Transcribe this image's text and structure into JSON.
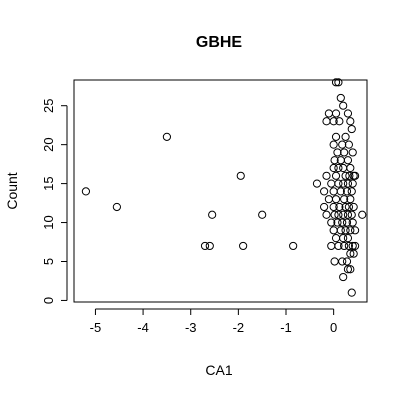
{
  "chart_data": {
    "type": "scatter",
    "title": "GBHE",
    "xlabel": "CA1",
    "ylabel": "Count",
    "xlim": [
      -5.45,
      0.7
    ],
    "ylim": [
      -0.2,
      28.3
    ],
    "x_ticks": [
      -5,
      -4,
      -3,
      -2,
      -1,
      0
    ],
    "y_ticks": [
      0,
      5,
      10,
      15,
      20,
      25
    ],
    "grid": false,
    "legend": "none",
    "points": [
      {
        "x": -5.2,
        "y": 14
      },
      {
        "x": -4.55,
        "y": 12
      },
      {
        "x": -3.5,
        "y": 21
      },
      {
        "x": -2.7,
        "y": 7
      },
      {
        "x": -2.6,
        "y": 7
      },
      {
        "x": -2.55,
        "y": 11
      },
      {
        "x": -1.95,
        "y": 16
      },
      {
        "x": -1.9,
        "y": 7
      },
      {
        "x": -1.5,
        "y": 11
      },
      {
        "x": -0.85,
        "y": 7
      },
      {
        "x": 0.05,
        "y": 28
      },
      {
        "x": 0.1,
        "y": 28
      },
      {
        "x": 0.15,
        "y": 26
      },
      {
        "x": 0.2,
        "y": 25
      },
      {
        "x": -0.1,
        "y": 24
      },
      {
        "x": 0.05,
        "y": 24
      },
      {
        "x": 0.3,
        "y": 24
      },
      {
        "x": -0.15,
        "y": 23
      },
      {
        "x": 0.0,
        "y": 23
      },
      {
        "x": 0.12,
        "y": 23
      },
      {
        "x": 0.35,
        "y": 23
      },
      {
        "x": 0.38,
        "y": 22
      },
      {
        "x": 0.05,
        "y": 21
      },
      {
        "x": 0.25,
        "y": 21
      },
      {
        "x": 0.0,
        "y": 20
      },
      {
        "x": 0.18,
        "y": 20
      },
      {
        "x": 0.32,
        "y": 20
      },
      {
        "x": 0.08,
        "y": 19
      },
      {
        "x": 0.22,
        "y": 19
      },
      {
        "x": 0.4,
        "y": 19
      },
      {
        "x": 0.02,
        "y": 18
      },
      {
        "x": 0.15,
        "y": 18
      },
      {
        "x": 0.3,
        "y": 18
      },
      {
        "x": 0.0,
        "y": 17
      },
      {
        "x": 0.1,
        "y": 17
      },
      {
        "x": 0.2,
        "y": 17
      },
      {
        "x": 0.35,
        "y": 17
      },
      {
        "x": -0.15,
        "y": 16
      },
      {
        "x": 0.05,
        "y": 16
      },
      {
        "x": 0.25,
        "y": 16
      },
      {
        "x": 0.33,
        "y": 16
      },
      {
        "x": 0.42,
        "y": 16
      },
      {
        "x": 0.45,
        "y": 16
      },
      {
        "x": -0.35,
        "y": 15
      },
      {
        "x": -0.05,
        "y": 15
      },
      {
        "x": 0.1,
        "y": 15
      },
      {
        "x": 0.2,
        "y": 15
      },
      {
        "x": 0.3,
        "y": 15
      },
      {
        "x": 0.4,
        "y": 15
      },
      {
        "x": -0.2,
        "y": 14
      },
      {
        "x": 0.0,
        "y": 14
      },
      {
        "x": 0.15,
        "y": 14
      },
      {
        "x": 0.28,
        "y": 14
      },
      {
        "x": 0.38,
        "y": 14
      },
      {
        "x": -0.1,
        "y": 13
      },
      {
        "x": 0.05,
        "y": 13
      },
      {
        "x": 0.22,
        "y": 13
      },
      {
        "x": 0.35,
        "y": 13
      },
      {
        "x": -0.2,
        "y": 12
      },
      {
        "x": 0.0,
        "y": 12
      },
      {
        "x": 0.12,
        "y": 12
      },
      {
        "x": 0.25,
        "y": 12
      },
      {
        "x": 0.32,
        "y": 12
      },
      {
        "x": 0.42,
        "y": 12
      },
      {
        "x": -0.15,
        "y": 11
      },
      {
        "x": 0.02,
        "y": 11
      },
      {
        "x": 0.1,
        "y": 11
      },
      {
        "x": 0.2,
        "y": 11
      },
      {
        "x": 0.3,
        "y": 11
      },
      {
        "x": 0.38,
        "y": 11
      },
      {
        "x": 0.6,
        "y": 11
      },
      {
        "x": -0.05,
        "y": 10
      },
      {
        "x": 0.08,
        "y": 10
      },
      {
        "x": 0.18,
        "y": 10
      },
      {
        "x": 0.28,
        "y": 10
      },
      {
        "x": 0.4,
        "y": 10
      },
      {
        "x": 0.0,
        "y": 9
      },
      {
        "x": 0.15,
        "y": 9
      },
      {
        "x": 0.25,
        "y": 9
      },
      {
        "x": 0.35,
        "y": 9
      },
      {
        "x": 0.45,
        "y": 9
      },
      {
        "x": 0.05,
        "y": 8
      },
      {
        "x": 0.2,
        "y": 8
      },
      {
        "x": 0.3,
        "y": 8
      },
      {
        "x": -0.05,
        "y": 7
      },
      {
        "x": 0.1,
        "y": 7
      },
      {
        "x": 0.22,
        "y": 7
      },
      {
        "x": 0.32,
        "y": 7
      },
      {
        "x": 0.4,
        "y": 7
      },
      {
        "x": 0.45,
        "y": 7
      },
      {
        "x": 0.35,
        "y": 6
      },
      {
        "x": 0.42,
        "y": 6
      },
      {
        "x": 0.02,
        "y": 5
      },
      {
        "x": 0.18,
        "y": 5
      },
      {
        "x": 0.28,
        "y": 5
      },
      {
        "x": 0.35,
        "y": 4
      },
      {
        "x": 0.3,
        "y": 4
      },
      {
        "x": 0.2,
        "y": 3
      },
      {
        "x": 0.38,
        "y": 1
      }
    ]
  }
}
